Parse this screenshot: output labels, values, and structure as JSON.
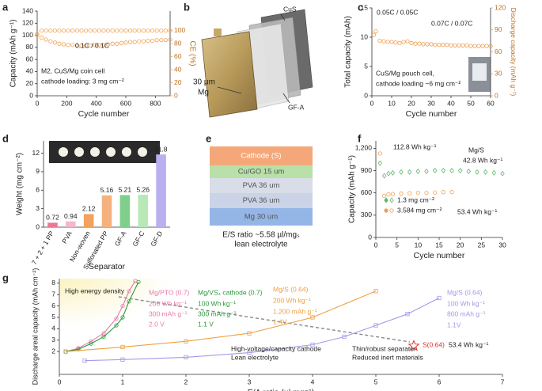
{
  "panel_labels": [
    "a",
    "b",
    "c",
    "d",
    "e",
    "f",
    "g"
  ],
  "battery_diagram": {
    "labels": [
      "CuS",
      "30 μm",
      "Mg",
      "GF-A"
    ]
  },
  "layer_diagram": {
    "layers": [
      "Cathode (S)",
      "Cu/GO 15 um",
      "PVA 36 um",
      "PVA 36 um",
      "Mg 30 um"
    ],
    "colors": [
      "#f4a87a",
      "#b8e0a8",
      "#d8dde8",
      "#cbd3e6",
      "#94b6e6"
    ],
    "caption": [
      "E/S ratio ~5.58 µl/mgₛ",
      "lean electrolyte"
    ]
  },
  "chart_data": [
    {
      "type": "scatter",
      "xlabel": "Cycle number",
      "ylabel": "Capacity (mAh g⁻¹)",
      "y2label": "CE (%)",
      "xlim": [
        0,
        900
      ],
      "xticks": [
        0,
        200,
        400,
        600,
        800
      ],
      "ylim": [
        0,
        140
      ],
      "yticks": [
        0,
        20,
        40,
        60,
        80,
        100,
        120,
        140
      ],
      "y2lim": [
        0,
        130
      ],
      "y2ticks": [
        0,
        20,
        40,
        60,
        80,
        100
      ],
      "x": [
        0,
        30,
        60,
        90,
        120,
        150,
        180,
        210,
        240,
        270,
        300,
        330,
        360,
        390,
        420,
        450,
        480,
        510,
        540,
        570,
        600,
        630,
        660,
        690,
        720,
        750,
        780,
        810,
        840,
        870,
        900
      ],
      "series": [
        {
          "color": "#f0a050",
          "marker": "circle-open",
          "values": [
            100,
            96,
            93,
            90,
            88,
            86,
            85,
            84,
            84,
            83,
            83,
            83,
            83,
            84,
            84,
            84,
            85,
            86,
            86,
            87,
            88,
            89,
            89,
            90,
            90,
            91,
            91,
            92,
            92,
            92,
            93
          ]
        },
        {
          "color": "#f0a050",
          "marker": "circle-open",
          "axis": "y2",
          "values": [
            95,
            100,
            100,
            100,
            100,
            100,
            100,
            100,
            100,
            100,
            100,
            100,
            100,
            100,
            100,
            100,
            100,
            100,
            100,
            100,
            100,
            100,
            100,
            100,
            100,
            100,
            100,
            100,
            100,
            100,
            100
          ]
        }
      ],
      "annotations": [
        {
          "text": "0.1C / 0.1C",
          "color": "#222"
        },
        {
          "text": "M2, CuS/Mg coin cell",
          "color": "#222"
        },
        {
          "text": "cathode loading: 3 mg cm⁻²",
          "color": "#222"
        }
      ]
    },
    {
      "type": "scatter",
      "xlabel": "Cycle number",
      "ylabel": "Total capacity (mAh)",
      "y2label": "Discharge capacity (mAh g⁻¹)",
      "xlim": [
        0,
        60
      ],
      "xticks": [
        0,
        10,
        20,
        30,
        40,
        50,
        60
      ],
      "ylim": [
        0,
        15
      ],
      "yticks": [
        0,
        5,
        10,
        15
      ],
      "y2lim": [
        0,
        120
      ],
      "y2ticks": [
        0,
        30,
        60,
        90,
        120
      ],
      "x": [
        1,
        2,
        4,
        6,
        8,
        10,
        12,
        14,
        16,
        18,
        20,
        22,
        24,
        26,
        28,
        30,
        32,
        34,
        36,
        38,
        40,
        42,
        44,
        46,
        48,
        50,
        52,
        54,
        56,
        58,
        60
      ],
      "series": [
        {
          "color": "#f0a050",
          "marker": "circle-open",
          "values": [
            10.4,
            11.0,
            9.4,
            9.3,
            9.2,
            9.2,
            9.1,
            9.0,
            9.2,
            9.3,
            9.0,
            8.9,
            8.9,
            8.8,
            8.8,
            8.8,
            8.7,
            8.7,
            8.7,
            8.7,
            8.6,
            8.6,
            8.6,
            8.6,
            8.6,
            8.5,
            8.5,
            8.5,
            8.5,
            8.5,
            8.5
          ]
        }
      ],
      "annotations": [
        {
          "text": "0.05C / 0.05C",
          "color": "#222"
        },
        {
          "text": "0.07C / 0.07C",
          "color": "#222"
        },
        {
          "text": "CuS/Mg pouch cell,",
          "color": "#222"
        },
        {
          "text": "cathode loading ~6 mg cm⁻²",
          "color": "#222"
        }
      ]
    },
    {
      "type": "bar",
      "xlabel": "Separator",
      "ylabel": "Weight (mg cm⁻²)",
      "categories": [
        "7 + 2 + 1 PP",
        "PVA",
        "Non-woven",
        "Sulfonated PP",
        "GF-A",
        "GF-C",
        "GF-D"
      ],
      "values": [
        0.72,
        0.94,
        2.12,
        5.16,
        5.21,
        5.26,
        11.8
      ],
      "colors": [
        "#e87a94",
        "#f4b8c8",
        "#f2a25a",
        "#f5b27e",
        "#7ecf8a",
        "#b8e8b8",
        "#b9b0f0"
      ],
      "ylim": [
        0,
        14
      ],
      "yticks": [
        0,
        3,
        6,
        9,
        12
      ]
    },
    {
      "type": "scatter",
      "xlabel": "Cycle number",
      "ylabel": "Capacity (mAh g⁻¹)",
      "xlim": [
        0,
        30
      ],
      "xticks": [
        0,
        5,
        10,
        15,
        20,
        25,
        30
      ],
      "ylim": [
        0,
        1300
      ],
      "yticks": [
        0,
        300,
        600,
        900,
        {
          "value": 1200,
          "label": "1,200"
        }
      ],
      "series": [
        {
          "name": "1.3 mg cm⁻²",
          "color": "#5cb86a",
          "marker": "diamond-open",
          "x": [
            1,
            2,
            3,
            4,
            6,
            8,
            10,
            12,
            14,
            16,
            18,
            20,
            22,
            24,
            26,
            28,
            30
          ],
          "values": [
            1000,
            830,
            860,
            870,
            880,
            880,
            890,
            890,
            900,
            900,
            900,
            900,
            890,
            880,
            880,
            870,
            860
          ]
        },
        {
          "name": "3.584 mg cm⁻²",
          "color": "#f0a050",
          "marker": "circle-open",
          "x": [
            1,
            2,
            3,
            4,
            6,
            8,
            10,
            12,
            14,
            16,
            18
          ],
          "values": [
            1130,
            560,
            580,
            585,
            590,
            595,
            600,
            600,
            605,
            610,
            610
          ]
        }
      ],
      "annotations": [
        {
          "text": "112.8 Wh kg⁻¹",
          "color": "#222"
        },
        {
          "text": "Mg/S",
          "color": "#222"
        },
        {
          "text": "42.8 Wh kg⁻¹",
          "color": "#222"
        },
        {
          "text": "53.4 Wh kg⁻¹",
          "color": "#222"
        }
      ]
    },
    {
      "type": "line",
      "xlabel": "E/A ratio (µl mg⁻¹)",
      "ylabel": "Discharge areal capacity (mAh cm⁻²)",
      "xlim": [
        0,
        7
      ],
      "xticks": [
        0,
        1,
        2,
        3,
        4,
        5,
        6,
        7
      ],
      "ylim": [
        0,
        8.4
      ],
      "yticks": [
        2,
        3,
        4,
        5,
        6,
        7,
        8
      ],
      "series": [
        {
          "name": "Mg/PTO (0.7)",
          "color": "#e87aa8",
          "marker": "circle-open",
          "x": [
            0.1,
            0.3,
            0.5,
            0.7,
            0.9,
            1.0,
            1.1,
            1.2
          ],
          "values": [
            2.0,
            2.3,
            2.9,
            3.6,
            4.9,
            6.0,
            7.3,
            8.2
          ]
        },
        {
          "name": "Mg/VS₄ cathode (0.7)",
          "color": "#2a9a3a",
          "marker": "circle-open",
          "x": [
            0.1,
            0.3,
            0.5,
            0.7,
            0.9,
            1.0,
            1.1,
            1.25
          ],
          "values": [
            2.0,
            2.2,
            2.7,
            3.3,
            4.3,
            5.0,
            6.4,
            8.1
          ]
        },
        {
          "name": "Mg/S (0.64)",
          "color": "#f0a040",
          "marker": "square-open",
          "x": [
            0.1,
            1,
            2,
            3,
            4,
            5
          ],
          "values": [
            2.0,
            2.4,
            2.9,
            3.6,
            5.0,
            7.3
          ]
        },
        {
          "name": "Mg/S (0.64)",
          "color": "#a898e8",
          "marker": "square-open",
          "x": [
            0.4,
            1,
            2,
            3,
            4,
            4.5,
            5,
            5.5,
            6
          ],
          "values": [
            1.2,
            1.3,
            1.5,
            1.9,
            2.6,
            3.3,
            4.3,
            5.3,
            6.7
          ]
        },
        {
          "name": "S(0.64)",
          "color": "#e03030",
          "marker": "star",
          "x": [
            5.6
          ],
          "values": [
            2.5
          ]
        }
      ],
      "annotations": [
        {
          "text": "High energy density",
          "color": "#222"
        },
        {
          "text": "200 Wh kg⁻¹",
          "color": "#e87aa8"
        },
        {
          "text": "300 mAh g⁻¹",
          "color": "#e87aa8"
        },
        {
          "text": "2.0 V",
          "color": "#e87aa8"
        },
        {
          "text": "100 Wh kg⁻¹",
          "color": "#2a9a3a"
        },
        {
          "text": "300 mAh g⁻¹",
          "color": "#2a9a3a"
        },
        {
          "text": "1.1 V",
          "color": "#2a9a3a"
        },
        {
          "text": "200 Wh kg⁻¹",
          "color": "#f0a040"
        },
        {
          "text": "1,200 mAh g⁻¹",
          "color": "#f0a040"
        },
        {
          "text": "1.4V",
          "color": "#f0a040"
        },
        {
          "text": "100 Wh kg⁻¹",
          "color": "#a898e8"
        },
        {
          "text": "800 mAh g⁻¹",
          "color": "#a898e8"
        },
        {
          "text": "1.1V",
          "color": "#a898e8"
        },
        {
          "text": "53.4 Wh kg⁻¹",
          "color": "#222"
        },
        {
          "text": "High-voltage/capacity cathode",
          "color": "#222"
        },
        {
          "text": "Lean electrolyte",
          "color": "#222"
        },
        {
          "text": "Thin/robust separator",
          "color": "#222"
        },
        {
          "text": "Reduced inert materials",
          "color": "#222"
        }
      ]
    }
  ]
}
